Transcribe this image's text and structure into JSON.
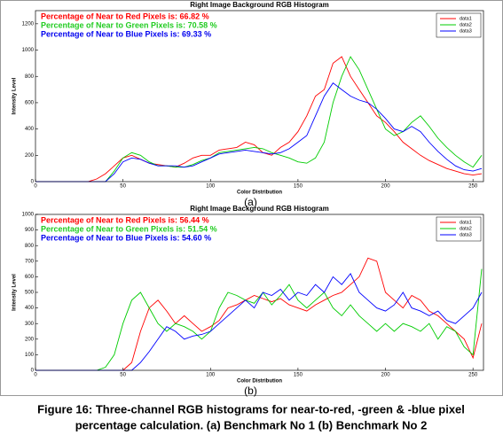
{
  "chart_data": [
    {
      "type": "line",
      "title": "Right Image Background RGB Histogram",
      "xlabel": "Color Distribution",
      "ylabel": "Intensity Level",
      "panel_label": "(a)",
      "x": [
        0,
        5,
        10,
        15,
        20,
        25,
        30,
        35,
        40,
        45,
        50,
        55,
        60,
        65,
        70,
        75,
        80,
        85,
        90,
        95,
        100,
        105,
        110,
        115,
        120,
        125,
        130,
        135,
        140,
        145,
        150,
        155,
        160,
        165,
        170,
        175,
        180,
        185,
        190,
        195,
        200,
        205,
        210,
        215,
        220,
        225,
        230,
        235,
        240,
        245,
        250,
        255
      ],
      "xlim": [
        0,
        256
      ],
      "xticks": [
        0,
        50,
        100,
        150,
        200,
        250
      ],
      "ylim": [
        0,
        1300
      ],
      "yticks": [
        0,
        200,
        400,
        600,
        800,
        1000,
        1200
      ],
      "legend": "upper right",
      "annotations": [
        {
          "text": "Percentage of Near to Red Pixels is: 66.82 %",
          "color": "#ff0000"
        },
        {
          "text": "Percentage of Near to Green Pixels is: 70.58 %",
          "color": "#22cc22"
        },
        {
          "text": "Percentage of Near to Blue Pixels is: 69.33 %",
          "color": "#0000ee"
        }
      ],
      "series": [
        {
          "name": "data1",
          "color": "#ff0000",
          "values": [
            0,
            0,
            0,
            0,
            0,
            0,
            0,
            20,
            60,
            120,
            180,
            200,
            170,
            140,
            130,
            120,
            110,
            140,
            180,
            200,
            200,
            240,
            250,
            260,
            300,
            280,
            220,
            200,
            260,
            300,
            380,
            500,
            650,
            700,
            900,
            950,
            800,
            700,
            600,
            500,
            450,
            380,
            300,
            250,
            200,
            160,
            130,
            100,
            80,
            60,
            50,
            60
          ]
        },
        {
          "name": "data2",
          "color": "#00cc00",
          "values": [
            0,
            0,
            0,
            0,
            0,
            0,
            0,
            0,
            0,
            80,
            180,
            220,
            200,
            150,
            120,
            120,
            110,
            110,
            130,
            160,
            180,
            220,
            230,
            240,
            250,
            260,
            250,
            220,
            200,
            180,
            150,
            140,
            180,
            300,
            600,
            800,
            950,
            850,
            700,
            550,
            400,
            350,
            380,
            450,
            500,
            420,
            330,
            260,
            200,
            150,
            110,
            200
          ]
        },
        {
          "name": "data3",
          "color": "#0000ff",
          "values": [
            0,
            0,
            0,
            0,
            0,
            0,
            0,
            0,
            0,
            60,
            150,
            180,
            170,
            140,
            120,
            120,
            120,
            110,
            120,
            150,
            180,
            210,
            220,
            230,
            240,
            230,
            220,
            210,
            220,
            250,
            300,
            350,
            500,
            650,
            750,
            700,
            650,
            620,
            600,
            550,
            480,
            400,
            380,
            420,
            380,
            300,
            230,
            170,
            120,
            90,
            80,
            100
          ]
        }
      ]
    },
    {
      "type": "line",
      "title": "Right Image Background RGB Histogram",
      "xlabel": "Color Distribution",
      "ylabel": "Intensity Level",
      "panel_label": "(b)",
      "x": [
        0,
        5,
        10,
        15,
        20,
        25,
        30,
        35,
        40,
        45,
        50,
        55,
        60,
        65,
        70,
        75,
        80,
        85,
        90,
        95,
        100,
        105,
        110,
        115,
        120,
        125,
        130,
        135,
        140,
        145,
        150,
        155,
        160,
        165,
        170,
        175,
        180,
        185,
        190,
        195,
        200,
        205,
        210,
        215,
        220,
        225,
        230,
        235,
        240,
        245,
        250,
        255
      ],
      "xlim": [
        0,
        256
      ],
      "xticks": [
        0,
        50,
        100,
        150,
        200,
        250
      ],
      "ylim": [
        0,
        1000
      ],
      "yticks": [
        0,
        100,
        200,
        300,
        400,
        500,
        600,
        700,
        800,
        900,
        1000
      ],
      "legend": "upper right",
      "annotations": [
        {
          "text": "Percentage of Near to Red Pixels is: 56.44 %",
          "color": "#ff0000"
        },
        {
          "text": "Percentage of Near to Green Pixels is: 51.54 %",
          "color": "#22cc22"
        },
        {
          "text": "Percentage of Near to Blue Pixels is: 54.60 %",
          "color": "#0000ee"
        }
      ],
      "series": [
        {
          "name": "data1",
          "color": "#ff0000",
          "values": [
            0,
            0,
            0,
            0,
            0,
            0,
            0,
            0,
            0,
            0,
            0,
            50,
            250,
            400,
            450,
            380,
            300,
            350,
            300,
            250,
            280,
            320,
            400,
            420,
            450,
            480,
            460,
            440,
            460,
            420,
            400,
            380,
            420,
            450,
            480,
            500,
            550,
            600,
            720,
            700,
            500,
            450,
            400,
            480,
            450,
            380,
            350,
            300,
            250,
            200,
            80,
            300
          ]
        },
        {
          "name": "data2",
          "color": "#00cc00",
          "values": [
            0,
            0,
            0,
            0,
            0,
            0,
            0,
            0,
            20,
            100,
            300,
            450,
            500,
            400,
            300,
            250,
            300,
            280,
            250,
            200,
            250,
            400,
            500,
            480,
            450,
            430,
            500,
            420,
            480,
            550,
            450,
            400,
            450,
            500,
            400,
            350,
            420,
            350,
            300,
            250,
            300,
            250,
            300,
            280,
            250,
            300,
            200,
            280,
            250,
            150,
            100,
            650
          ]
        },
        {
          "name": "data3",
          "color": "#0000ff",
          "values": [
            0,
            0,
            0,
            0,
            0,
            0,
            0,
            0,
            0,
            0,
            0,
            0,
            50,
            120,
            200,
            280,
            250,
            200,
            220,
            230,
            250,
            300,
            350,
            400,
            450,
            400,
            500,
            480,
            520,
            450,
            500,
            480,
            550,
            500,
            600,
            550,
            620,
            500,
            450,
            400,
            380,
            420,
            500,
            400,
            380,
            350,
            380,
            320,
            300,
            350,
            400,
            500
          ]
        }
      ]
    }
  ],
  "caption": [
    "Figure 16: Three-channel RGB histograms for near-to-red, -green & -blue pixel",
    "percentage calculation. (a) Benchmark No 1 (b) Benchmark No 2"
  ]
}
